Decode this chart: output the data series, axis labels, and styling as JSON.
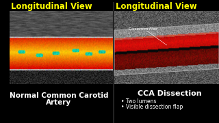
{
  "bg_color": "#000000",
  "left_title": "Longitudinal View",
  "right_title": "Longitudinal View",
  "title_color": "#ffff00",
  "title_fontsize": 8.5,
  "left_label_line1": "Normal Common Carotid",
  "left_label_line2": "Artery",
  "right_label": "CCA Dissection",
  "label_color": "#ffffff",
  "label_fontsize": 7.5,
  "bullet_color": "#ffffff",
  "bullet_fontsize": 5.5,
  "bullets": [
    "Two lumens",
    "Visible dissection flap"
  ],
  "dissection_flap_label": "Dissection Flap",
  "dissection_flap_color": "#ffffff"
}
